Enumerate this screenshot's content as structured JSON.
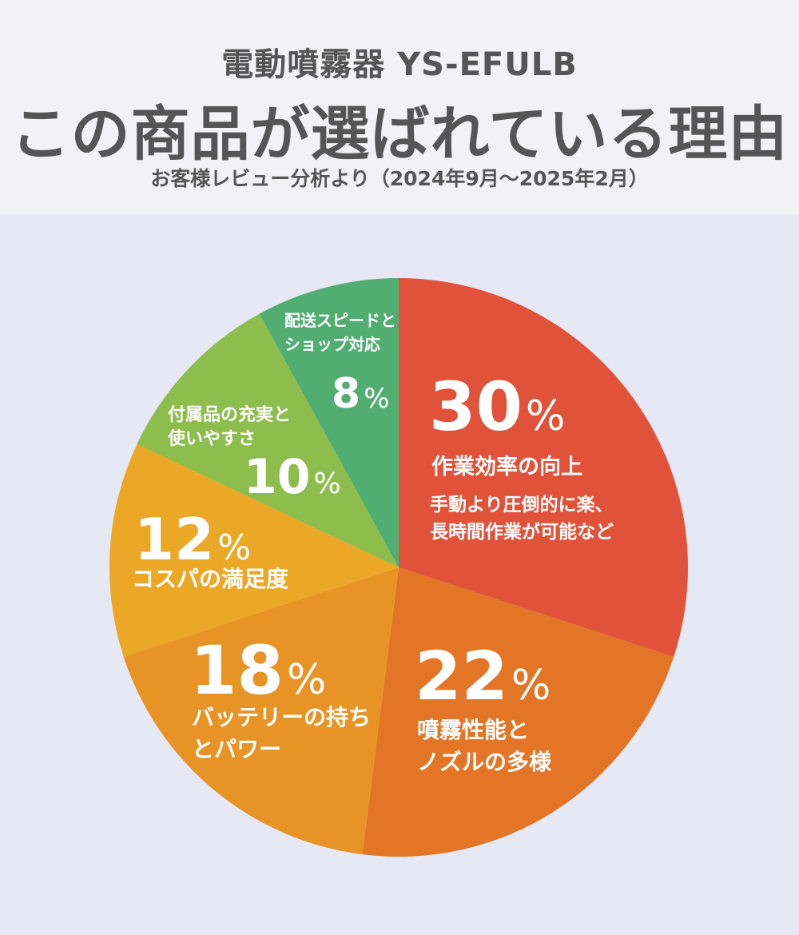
{
  "header": {
    "product": "電動噴霧器 YS-EFULB",
    "headline": "この商品が選ばれている理由",
    "source": "お客様レビュー分析より（2024年9月～2025年2月）"
  },
  "chart_data": {
    "type": "pie",
    "title": "この商品が選ばれている理由",
    "subtitle": "お客様レビュー分析より（2024年9月～2025年2月）",
    "start": "12 o'clock",
    "direction": "clockwise",
    "slices": [
      {
        "pct": 30,
        "label": [
          "作業効率の向上"
        ],
        "sub": [
          "手動より圧倒的に楽、",
          "長時間作業が可能など"
        ],
        "color": "#e0533a"
      },
      {
        "pct": 22,
        "label": [
          "噴霧性能と",
          "ノズルの多様"
        ],
        "sub": [],
        "color": "#e37527"
      },
      {
        "pct": 18,
        "label": [
          "バッテリーの持ち",
          "とパワー"
        ],
        "sub": [],
        "color": "#e89326"
      },
      {
        "pct": 12,
        "label": [
          "コスパの満足度"
        ],
        "sub": [],
        "color": "#eba827"
      },
      {
        "pct": 10,
        "label": [
          "付属品の充実と",
          "使いやすさ"
        ],
        "sub": [],
        "color": "#8dbd4c"
      },
      {
        "pct": 8,
        "label": [
          "配送スピードと",
          "ショップ対応"
        ],
        "sub": [],
        "color": "#52ad72"
      }
    ],
    "unit": "%"
  }
}
